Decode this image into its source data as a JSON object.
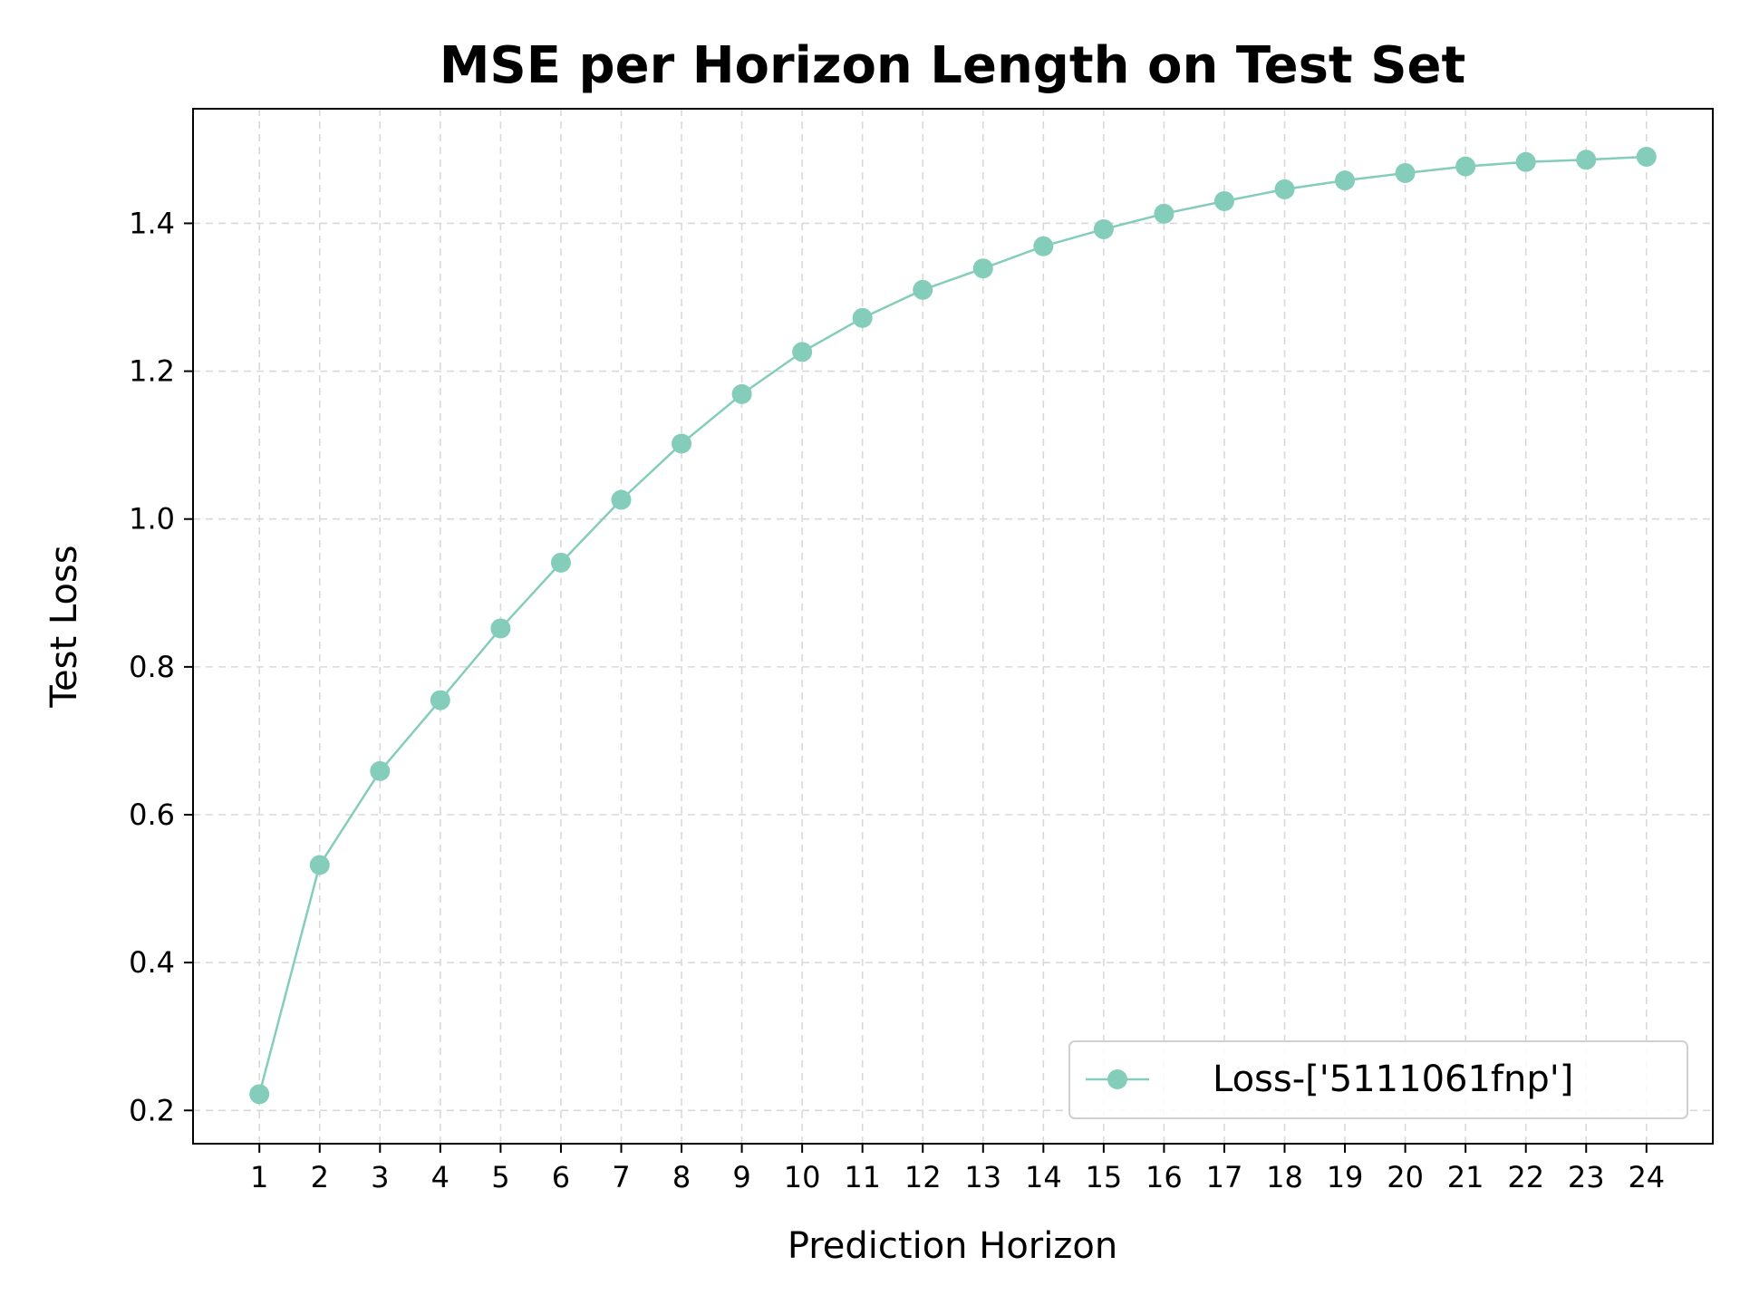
{
  "chart_data": {
    "type": "line",
    "title": "MSE per Horizon Length on Test Set",
    "xlabel": "Prediction Horizon",
    "ylabel": "Test Loss",
    "x": [
      1,
      2,
      3,
      4,
      5,
      6,
      7,
      8,
      9,
      10,
      11,
      12,
      13,
      14,
      15,
      16,
      17,
      18,
      19,
      20,
      21,
      22,
      23,
      24
    ],
    "x_tick_labels": [
      "1",
      "2",
      "3",
      "4",
      "5",
      "6",
      "7",
      "8",
      "9",
      "10",
      "11",
      "12",
      "13",
      "14",
      "15",
      "16",
      "17",
      "18",
      "19",
      "20",
      "21",
      "22",
      "23",
      "24"
    ],
    "y_ticks": [
      0.2,
      0.4,
      0.6,
      0.8,
      1.0,
      1.2,
      1.4
    ],
    "y_tick_labels": [
      "0.2",
      "0.4",
      "0.6",
      "0.8",
      "1.0",
      "1.2",
      "1.4"
    ],
    "xlim": [
      -0.1,
      25.1
    ],
    "ylim": [
      0.155,
      1.555
    ],
    "grid": true,
    "legend_position": "lower-right",
    "series": [
      {
        "name": "Loss-['5111061fnp']",
        "color": "#84cdbb",
        "values": [
          0.222,
          0.532,
          0.659,
          0.755,
          0.852,
          0.941,
          1.026,
          1.102,
          1.169,
          1.226,
          1.272,
          1.31,
          1.339,
          1.369,
          1.392,
          1.413,
          1.43,
          1.446,
          1.458,
          1.468,
          1.477,
          1.483,
          1.486,
          1.49
        ]
      }
    ]
  }
}
